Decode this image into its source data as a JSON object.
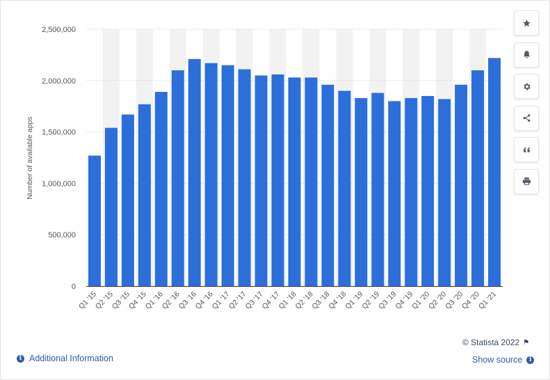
{
  "chart_data": {
    "type": "bar",
    "ylabel": "Number of available apps",
    "ylim": [
      0,
      2500000
    ],
    "yticks": [
      0,
      500000,
      1000000,
      1500000,
      2000000,
      2500000
    ],
    "ytick_labels": [
      "0",
      "500,000",
      "1,000,000",
      "1,500,000",
      "2,000,000",
      "2,500,000"
    ],
    "categories": [
      "Q1 '15",
      "Q2 '15",
      "Q3 '15",
      "Q4 '15",
      "Q1 '16",
      "Q2 '16",
      "Q3 '16",
      "Q4 '16",
      "Q1 '17",
      "Q2 '17",
      "Q3 '17",
      "Q4 '17",
      "Q1 '18",
      "Q2 '18",
      "Q3 '18",
      "Q4 '18",
      "Q1 '19",
      "Q2 '19",
      "Q3 '19",
      "Q4 '19",
      "Q1 '20",
      "Q2 '20",
      "Q3 '20",
      "Q4 '20",
      "Q1 '21"
    ],
    "values": [
      1270000,
      1540000,
      1670000,
      1770000,
      1890000,
      2100000,
      2210000,
      2170000,
      2150000,
      2110000,
      2050000,
      2060000,
      2030000,
      2030000,
      1960000,
      1900000,
      1830000,
      1880000,
      1800000,
      1830000,
      1850000,
      1820000,
      1960000,
      2100000,
      2220000
    ],
    "grid": true,
    "bar_color": "#2c6fdb",
    "band_color": "#f2f2f2"
  },
  "toolbar": {
    "buttons": [
      "star-icon",
      "bell-icon",
      "gear-icon",
      "share-icon",
      "quote-icon",
      "print-icon"
    ]
  },
  "footer": {
    "credit": "© Statista 2022",
    "additional_info": "Additional Information",
    "show_source": "Show source",
    "info_glyph": "i",
    "flag_glyph": "⚑"
  },
  "colors": {
    "accent": "#2b5ca8",
    "icon": "#555b66"
  }
}
